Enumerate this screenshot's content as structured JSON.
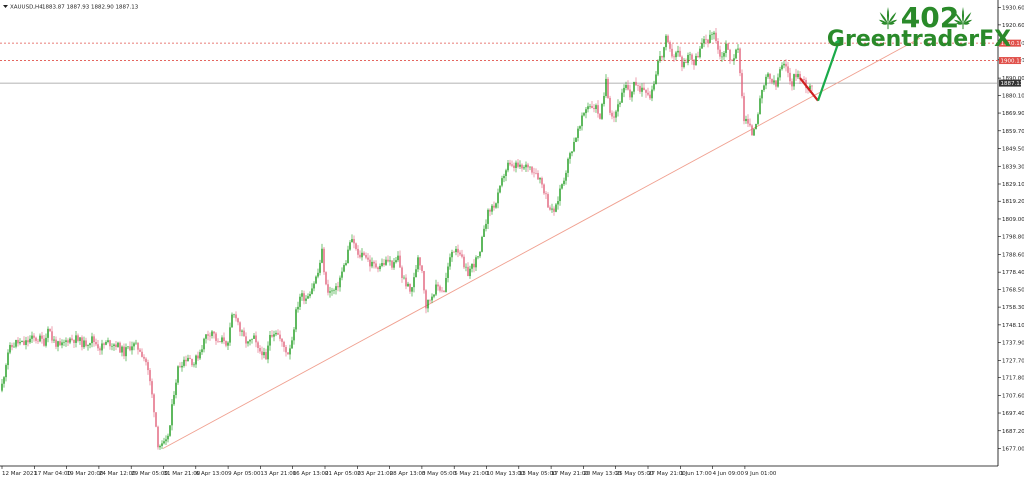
{
  "header": {
    "symbol": "XAUUSD,H4",
    "ohlc": "1883.87 1887.93 1882.90 1887.13"
  },
  "logo": {
    "number": "402",
    "name": "GreentraderFX",
    "leaf_icon": "cannabis-leaf-icon",
    "color": "#2a8a2a"
  },
  "colors": {
    "bull": "#1a9a1a",
    "bear": "#e0607a",
    "resistance": "#e0504a",
    "trendline": "#f0a090",
    "arrow_up": "#1aaa4a",
    "arrow_down": "#d02020",
    "price_line": "#9a9a9a"
  },
  "chart_data": {
    "type": "candlestick",
    "title": "",
    "xlabel": "",
    "ylabel": "",
    "ylim": [
      1674,
      1935
    ],
    "grid": false,
    "legend": "none",
    "y_ticks": [
      "1930.60",
      "1920.60",
      "1910.10",
      "1900.50",
      "1890.00",
      "1880.10",
      "1869.90",
      "1859.70",
      "1849.50",
      "1839.30",
      "1829.10",
      "1819.20",
      "1809.00",
      "1798.80",
      "1788.60",
      "1778.40",
      "1768.50",
      "1758.30",
      "1748.10",
      "1737.90",
      "1727.70",
      "1717.80",
      "1707.60",
      "1697.40",
      "1687.20",
      "1677.00"
    ],
    "x_ticks": [
      "12 Mar 2021",
      "17 Mar 04:00",
      "19 Mar 20:00",
      "24 Mar 12:00",
      "29 Mar 05:00",
      "31 Mar 21:00",
      "6 Apr 13:00",
      "9 Apr 05:00",
      "13 Apr 21:00",
      "16 Apr 13:00",
      "21 Apr 05:00",
      "23 Apr 21:00",
      "28 Apr 13:00",
      "3 May 05:00",
      "5 May 21:00",
      "10 May 13:00",
      "13 May 05:00",
      "17 May 21:00",
      "20 May 13:00",
      "25 May 05:00",
      "27 May 21:00",
      "1 Jun 17:00",
      "4 Jun 09:00",
      "9 Jun 01:00"
    ],
    "series_path": [
      [
        0,
        1707
      ],
      [
        8,
        1733
      ],
      [
        16,
        1738
      ],
      [
        24,
        1737
      ],
      [
        31,
        1740
      ],
      [
        40,
        1740
      ],
      [
        45,
        1738
      ],
      [
        48,
        1748
      ],
      [
        52,
        1740
      ],
      [
        60,
        1735
      ],
      [
        68,
        1740
      ],
      [
        76,
        1740
      ],
      [
        84,
        1737
      ],
      [
        92,
        1740
      ],
      [
        100,
        1735
      ],
      [
        108,
        1738
      ],
      [
        116,
        1737
      ],
      [
        124,
        1732
      ],
      [
        132,
        1737
      ],
      [
        140,
        1734
      ],
      [
        146,
        1727
      ],
      [
        150,
        1715
      ],
      [
        154,
        1700
      ],
      [
        158,
        1680
      ],
      [
        162,
        1678
      ],
      [
        166,
        1680
      ],
      [
        170,
        1690
      ],
      [
        174,
        1710
      ],
      [
        178,
        1723
      ],
      [
        182,
        1727
      ],
      [
        188,
        1730
      ],
      [
        194,
        1726
      ],
      [
        200,
        1733
      ],
      [
        206,
        1742
      ],
      [
        212,
        1745
      ],
      [
        218,
        1737
      ],
      [
        224,
        1740
      ],
      [
        228,
        1736
      ],
      [
        232,
        1753
      ],
      [
        236,
        1754
      ],
      [
        240,
        1745
      ],
      [
        244,
        1740
      ],
      [
        248,
        1737
      ],
      [
        254,
        1740
      ],
      [
        258,
        1733
      ],
      [
        262,
        1733
      ],
      [
        266,
        1727
      ],
      [
        270,
        1743
      ],
      [
        276,
        1745
      ],
      [
        282,
        1737
      ],
      [
        288,
        1732
      ],
      [
        292,
        1740
      ],
      [
        296,
        1755
      ],
      [
        300,
        1765
      ],
      [
        306,
        1764
      ],
      [
        312,
        1770
      ],
      [
        318,
        1778
      ],
      [
        322,
        1790
      ],
      [
        326,
        1770
      ],
      [
        330,
        1767
      ],
      [
        336,
        1768
      ],
      [
        340,
        1775
      ],
      [
        346,
        1785
      ],
      [
        350,
        1796
      ],
      [
        354,
        1795
      ],
      [
        358,
        1787
      ],
      [
        364,
        1790
      ],
      [
        370,
        1783
      ],
      [
        376,
        1782
      ],
      [
        382,
        1783
      ],
      [
        388,
        1785
      ],
      [
        394,
        1782
      ],
      [
        398,
        1787
      ],
      [
        402,
        1776
      ],
      [
        406,
        1772
      ],
      [
        410,
        1767
      ],
      [
        414,
        1774
      ],
      [
        418,
        1788
      ],
      [
        422,
        1780
      ],
      [
        426,
        1759
      ],
      [
        430,
        1763
      ],
      [
        434,
        1768
      ],
      [
        438,
        1770
      ],
      [
        444,
        1768
      ],
      [
        448,
        1781
      ],
      [
        452,
        1790
      ],
      [
        456,
        1793
      ],
      [
        460,
        1790
      ],
      [
        464,
        1780
      ],
      [
        468,
        1778
      ],
      [
        472,
        1782
      ],
      [
        476,
        1785
      ],
      [
        480,
        1788
      ],
      [
        484,
        1805
      ],
      [
        488,
        1812
      ],
      [
        492,
        1816
      ],
      [
        496,
        1818
      ],
      [
        500,
        1826
      ],
      [
        504,
        1835
      ],
      [
        508,
        1840
      ],
      [
        512,
        1838
      ],
      [
        516,
        1840
      ],
      [
        520,
        1838
      ],
      [
        524,
        1838
      ],
      [
        528,
        1840
      ],
      [
        532,
        1838
      ],
      [
        536,
        1836
      ],
      [
        540,
        1832
      ],
      [
        544,
        1826
      ],
      [
        548,
        1818
      ],
      [
        552,
        1813
      ],
      [
        556,
        1815
      ],
      [
        560,
        1826
      ],
      [
        564,
        1833
      ],
      [
        568,
        1842
      ],
      [
        572,
        1850
      ],
      [
        576,
        1857
      ],
      [
        580,
        1862
      ],
      [
        584,
        1870
      ],
      [
        588,
        1875
      ],
      [
        592,
        1874
      ],
      [
        596,
        1873
      ],
      [
        600,
        1868
      ],
      [
        604,
        1878
      ],
      [
        606,
        1890
      ],
      [
        610,
        1872
      ],
      [
        614,
        1868
      ],
      [
        618,
        1875
      ],
      [
        622,
        1880
      ],
      [
        626,
        1885
      ],
      [
        630,
        1879
      ],
      [
        634,
        1888
      ],
      [
        638,
        1883
      ],
      [
        642,
        1885
      ],
      [
        646,
        1884
      ],
      [
        650,
        1880
      ],
      [
        654,
        1888
      ],
      [
        658,
        1900
      ],
      [
        662,
        1903
      ],
      [
        666,
        1912
      ],
      [
        670,
        1905
      ],
      [
        674,
        1903
      ],
      [
        678,
        1905
      ],
      [
        682,
        1898
      ],
      [
        686,
        1900
      ],
      [
        690,
        1905
      ],
      [
        694,
        1898
      ],
      [
        698,
        1904
      ],
      [
        702,
        1909
      ],
      [
        706,
        1912
      ],
      [
        710,
        1913
      ],
      [
        714,
        1918
      ],
      [
        718,
        1906
      ],
      [
        722,
        1902
      ],
      [
        726,
        1910
      ],
      [
        730,
        1900
      ],
      [
        734,
        1903
      ],
      [
        738,
        1906
      ],
      [
        740,
        1895
      ],
      [
        742,
        1880
      ],
      [
        744,
        1867
      ],
      [
        748,
        1864
      ],
      [
        752,
        1858
      ],
      [
        756,
        1866
      ],
      [
        760,
        1876
      ],
      [
        764,
        1886
      ],
      [
        768,
        1891
      ],
      [
        772,
        1888
      ],
      [
        776,
        1885
      ],
      [
        780,
        1895
      ],
      [
        784,
        1897
      ],
      [
        788,
        1893
      ],
      [
        792,
        1887
      ],
      [
        796,
        1893
      ],
      [
        800,
        1890
      ],
      [
        804,
        1888
      ],
      [
        808,
        1885
      ],
      [
        812,
        1887
      ]
    ],
    "resistance_levels": [
      1910.1,
      1900.1
    ],
    "current_price": 1887.13,
    "trendline": {
      "start": [
        163,
        1677
      ],
      "end": [
        920,
        1913
      ]
    },
    "projection": {
      "from": [
        800,
        1890
      ],
      "low": [
        818,
        1877
      ],
      "target": [
        840,
        1913
      ]
    },
    "price_labels": [
      "1910.10",
      "1900.13",
      "1887.13"
    ]
  }
}
